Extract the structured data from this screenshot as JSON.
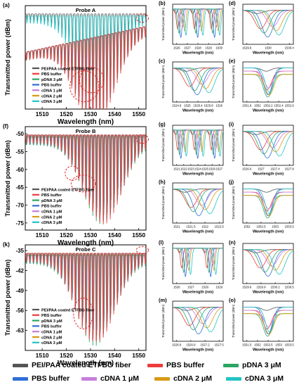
{
  "figure": {
    "rows": [
      {
        "main": {
          "label": "(a)",
          "probe": "Probe A",
          "ylabel": "Transmitted power (dBm)",
          "xlabel": "Wavelength (nm)",
          "xlim": [
            1503,
            1553
          ],
          "ylim": [
            -62,
            -30
          ],
          "xticks": [
            1510,
            1520,
            1530,
            1540,
            1550
          ],
          "yticks": [],
          "legend": [
            "PEI/PAA coated ETFBG fiber",
            "PBS buffer",
            "pDNA 3 μM",
            "PBS buffer",
            "cDNA 1 μM",
            "cDNA 2 μM",
            "cDNA 3 μM"
          ]
        },
        "subs": [
          {
            "label": "(b)",
            "xticks": [
              1526,
              1527,
              1528,
              1529,
              1530
            ],
            "yticks": [],
            "xlabel": "Wavelength (nm)",
            "ylabel": "Transmitted power (dBm)"
          },
          {
            "label": "(d)",
            "xticks": [
              1529.6,
              1530.0,
              1530.4
            ],
            "yticks": [],
            "xlabel": "Wavelength (nm)",
            "ylabel": "Transmitted power (dBm)"
          },
          {
            "label": "(c)",
            "xticks": [
              1524.6,
              1525.0,
              1525.4,
              1525.8,
              1526.0
            ],
            "yticks": [],
            "xlabel": "Wavelength (nm)",
            "ylabel": "Transmitted power (dBm)"
          },
          {
            "label": "(e)",
            "xticks": [
              1551.8,
              1552.0,
              1552.2,
              1552.4,
              1552.6
            ],
            "yticks": [],
            "xlabel": "Wavelength (nm)",
            "ylabel": "Transmitted power (dBm)"
          }
        ]
      },
      {
        "main": {
          "label": "(f)",
          "probe": "Probe B",
          "ylabel": "Transmitted power (dBm)",
          "xlabel": "Wavelength (nm)",
          "xlim": [
            1503,
            1553
          ],
          "ylim": [
            -77,
            -48
          ],
          "xticks": [
            1510,
            1520,
            1530,
            1540,
            1550
          ],
          "yticks": [
            -50,
            -55,
            -60,
            -65,
            -70,
            -75
          ],
          "legend": [
            "PEI/PAA coated ETFBG fiber",
            "PBS buffer",
            "pDNA 3 μM",
            "PBS buffer",
            "cDNA 1 μM",
            "cDNA 2 μM",
            "cDNA 3 μM"
          ]
        },
        "subs": [
          {
            "label": "(g)",
            "xticks": [
              1521,
              1522,
              1523,
              1524,
              1525,
              1526,
              1527
            ],
            "yticks": [],
            "xlabel": "Wavelength (nm)",
            "ylabel": "Transmitted power (dBm)"
          },
          {
            "label": "(i)",
            "xticks": [
              1526.6,
              1527.0,
              1527.4,
              1527.8
            ],
            "yticks": [],
            "xlabel": "Wavelength (nm)",
            "ylabel": "Transmitted power (dBm)"
          },
          {
            "label": "(h)",
            "xticks": [
              1521.0,
              1521.5,
              1522.0,
              1522.5
            ],
            "yticks": [],
            "xlabel": "Wavelength (nm)",
            "ylabel": "Transmitted power (dBm)"
          },
          {
            "label": "(j)",
            "xticks": [
              1552.0,
              1552.5,
              1553.0,
              1553.5
            ],
            "yticks": [],
            "xlabel": "Wavelength (nm)",
            "ylabel": "Transmitted power (dBm)"
          }
        ]
      },
      {
        "main": {
          "label": "(k)",
          "probe": "Probe C",
          "ylabel": "Transmitted power (dBm)",
          "xlabel": "Wavelength (nm)",
          "xlim": [
            1503,
            1553
          ],
          "ylim": [
            -70,
            -33
          ],
          "xticks": [
            1510,
            1520,
            1530,
            1540,
            1550
          ],
          "yticks": [
            -35,
            -42,
            -49,
            -56,
            -63
          ],
          "legend": [
            "PEI/PAA coated ETFBG fiber",
            "PBS buffer",
            "pDNA 3 μM",
            "PBS buffer",
            "cDNA 1 μM",
            "cDNA 2 μM",
            "cDNA 3 μM"
          ]
        },
        "subs": [
          {
            "label": "(l)",
            "xticks": [
              1526,
              1527,
              1528,
              1529
            ],
            "yticks": [],
            "xlabel": "Wavelength (nm)",
            "ylabel": "Transmitted power (dBm)"
          },
          {
            "label": "(n)",
            "xticks": [
              1529.6,
              1529.9,
              1530.2,
              1530.5
            ],
            "yticks": [],
            "xlabel": "Wavelength (nm)",
            "ylabel": "Transmitted power (dBm)"
          },
          {
            "label": "(m)",
            "xticks": [
              1526.6,
              1526.9,
              1527.2,
              1527.5
            ],
            "yticks": [],
            "xlabel": "Wavelength (nm)",
            "ylabel": "Transmitted power (dBm)"
          },
          {
            "label": "(o)",
            "xticks": [
              1551.5,
              1552.0,
              1552.5,
              1553.0,
              1553.5
            ],
            "yticks": [],
            "xlabel": "Wavelength (nm)",
            "ylabel": "Transmitted power (dBm)"
          }
        ]
      }
    ]
  },
  "legend": {
    "items": [
      {
        "name": "PEI/PAA coated ETFBG fiber",
        "color": "#555555"
      },
      {
        "name": "PBS buffer",
        "color": "#ee3b3b"
      },
      {
        "name": "pDNA 3 μM",
        "color": "#2aa563"
      },
      {
        "name": "PBS buffer",
        "color": "#2f6fd6"
      },
      {
        "name": "cDNA 1 μM",
        "color": "#c77ddb"
      },
      {
        "name": "cDNA 2 μM",
        "color": "#d99a14"
      },
      {
        "name": "cDNA 3 μM",
        "color": "#22c4c4"
      }
    ]
  },
  "chart_data": [
    {
      "type": "line",
      "title": "Probe A",
      "xlabel": "Wavelength (nm)",
      "ylabel": "Transmitted power (dBm)",
      "x_range": [
        1503,
        1553
      ],
      "y_range": [
        -62,
        -30
      ],
      "series": [
        {
          "name": "PEI/PAA coated ETFBG fiber",
          "note_value": "upper envelope approx -31 dBm"
        },
        {
          "name": "cDNA 3 μM",
          "note_value": "deepest resonances approx -58 dBm near 1530 nm"
        }
      ]
    },
    {
      "type": "line",
      "title": "Probe B",
      "xlabel": "Wavelength (nm)",
      "ylabel": "Transmitted power (dBm)",
      "x_range": [
        1503,
        1553
      ],
      "y_range": [
        -77,
        -48
      ],
      "yticks": [
        -50,
        -55,
        -60,
        -65,
        -70,
        -75
      ],
      "series": [
        {
          "name": "PEI/PAA coated ETFBG fiber",
          "note_value": "envelope approx -50 to -58 dBm"
        },
        {
          "name": "cDNA 3 μM",
          "note_value": "deepest resonances approx -75 dBm near 1535 nm"
        }
      ]
    },
    {
      "type": "line",
      "title": "Probe C",
      "xlabel": "Wavelength (nm)",
      "ylabel": "Transmitted power (dBm)",
      "x_range": [
        1503,
        1553
      ],
      "y_range": [
        -70,
        -33
      ],
      "yticks": [
        -35,
        -42,
        -49,
        -56,
        -63
      ],
      "series": [
        {
          "name": "PEI/PAA coated ETFBG fiber",
          "note_value": "envelope approx -35 dBm"
        },
        {
          "name": "cDNA 3 μM",
          "note_value": "deepest resonances approx -68 dBm near 1532 nm"
        }
      ]
    }
  ]
}
